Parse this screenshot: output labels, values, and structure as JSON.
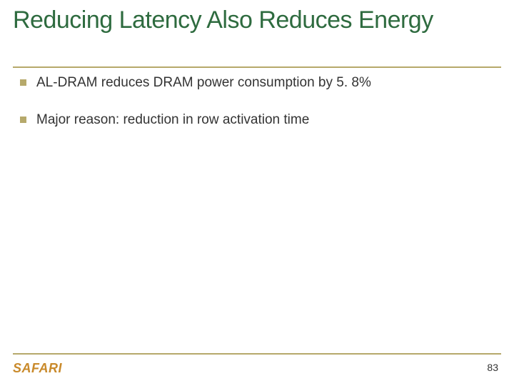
{
  "slide": {
    "title": "Reducing Latency Also Reduces Energy",
    "title_color": "#2e6b3f",
    "title_fontsize": 34,
    "rule_color": "#b6a96b",
    "bullets": [
      {
        "text": "AL-DRAM reduces DRAM power consumption by 5. 8%"
      },
      {
        "text": "Major reason: reduction in row activation time"
      }
    ],
    "bullet_text_color": "#333333",
    "bullet_fontsize": 19,
    "bullet_marker_color": "#b6a96b",
    "logo_text": "SAFARI",
    "logo_color": "#c98a2b",
    "logo_fontsize": 18,
    "page_number": "83",
    "page_number_color": "#333333",
    "page_number_fontsize": 14,
    "background_color": "#ffffff"
  }
}
